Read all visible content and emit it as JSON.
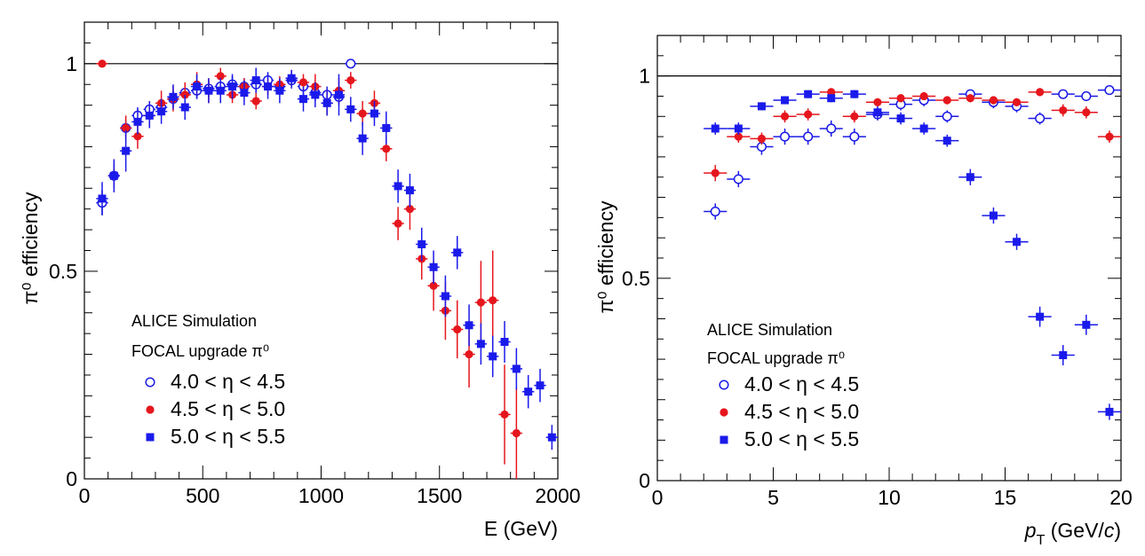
{
  "colors": {
    "open": "#1a1ae6",
    "red": "#e6161d",
    "blue": "#1a1aeb",
    "axis": "#000000"
  },
  "chart_data": [
    {
      "type": "scatter",
      "xlabel": "E (GeV)",
      "ylabel": "π⁰ efficiency",
      "xlim": [
        0,
        2000
      ],
      "ylim": [
        0,
        1.1
      ],
      "x_ticks": [
        0,
        500,
        1000,
        1500,
        2000
      ],
      "x_tick_labels": [
        "0",
        "500",
        "1000",
        "1500",
        "2000"
      ],
      "y_ticks": [
        0,
        0.5,
        1
      ],
      "y_tick_labels": [
        "0",
        "0.5",
        "1"
      ],
      "reference_line": 1,
      "legend_header": [
        "ALICE Simulation",
        "FOCAL upgrade π⁰"
      ],
      "series": [
        {
          "name": "4.0 < η < 4.5",
          "marker": "open-circle",
          "points": [
            [
              75,
              0.665,
              0.03
            ],
            [
              125,
              0.73,
              0.02
            ],
            [
              175,
              0.845,
              0.02
            ],
            [
              225,
              0.875,
              0.02
            ],
            [
              275,
              0.89,
              0.02
            ],
            [
              325,
              0.895,
              0.02
            ],
            [
              375,
              0.915,
              0.02
            ],
            [
              425,
              0.93,
              0.02
            ],
            [
              475,
              0.935,
              0.02
            ],
            [
              525,
              0.94,
              0.02
            ],
            [
              575,
              0.945,
              0.02
            ],
            [
              625,
              0.95,
              0.02
            ],
            [
              675,
              0.945,
              0.02
            ],
            [
              725,
              0.95,
              0.02
            ],
            [
              775,
              0.96,
              0.02
            ],
            [
              825,
              0.945,
              0.02
            ],
            [
              875,
              0.96,
              0.02
            ],
            [
              925,
              0.945,
              0.02
            ],
            [
              975,
              0.93,
              0.02
            ],
            [
              1025,
              0.925,
              0.02
            ],
            [
              1075,
              0.92,
              0.02
            ],
            [
              1125,
              1.0,
              0.01
            ]
          ]
        },
        {
          "name": "4.5 < η < 5.0",
          "marker": "filled-circle",
          "points": [
            [
              75,
              1.0,
              0.0
            ],
            [
              125,
              0.73,
              0.03
            ],
            [
              175,
              0.845,
              0.03
            ],
            [
              225,
              0.825,
              0.03
            ],
            [
              275,
              0.875,
              0.03
            ],
            [
              325,
              0.905,
              0.03
            ],
            [
              375,
              0.915,
              0.03
            ],
            [
              425,
              0.925,
              0.03
            ],
            [
              475,
              0.95,
              0.03
            ],
            [
              525,
              0.935,
              0.03
            ],
            [
              575,
              0.97,
              0.02
            ],
            [
              625,
              0.925,
              0.02
            ],
            [
              675,
              0.945,
              0.02
            ],
            [
              725,
              0.91,
              0.02
            ],
            [
              775,
              0.945,
              0.02
            ],
            [
              825,
              0.95,
              0.02
            ],
            [
              875,
              0.965,
              0.02
            ],
            [
              925,
              0.955,
              0.02
            ],
            [
              975,
              0.945,
              0.03
            ],
            [
              1025,
              0.905,
              0.03
            ],
            [
              1075,
              0.935,
              0.03
            ],
            [
              1125,
              0.96,
              0.02
            ],
            [
              1175,
              0.88,
              0.03
            ],
            [
              1225,
              0.905,
              0.03
            ],
            [
              1275,
              0.795,
              0.03
            ],
            [
              1325,
              0.615,
              0.04
            ],
            [
              1375,
              0.65,
              0.05
            ],
            [
              1425,
              0.53,
              0.05
            ],
            [
              1475,
              0.465,
              0.06
            ],
            [
              1525,
              0.405,
              0.07
            ],
            [
              1575,
              0.36,
              0.07
            ],
            [
              1625,
              0.3,
              0.08
            ],
            [
              1675,
              0.425,
              0.1
            ],
            [
              1725,
              0.43,
              0.12
            ],
            [
              1775,
              0.155,
              0.12
            ],
            [
              1825,
              0.11,
              0.11
            ]
          ]
        },
        {
          "name": "5.0 < η < 5.5",
          "marker": "filled-square",
          "points": [
            [
              75,
              0.675,
              0.04
            ],
            [
              125,
              0.73,
              0.04
            ],
            [
              175,
              0.79,
              0.05
            ],
            [
              225,
              0.86,
              0.03
            ],
            [
              275,
              0.875,
              0.03
            ],
            [
              325,
              0.885,
              0.03
            ],
            [
              375,
              0.92,
              0.03
            ],
            [
              425,
              0.895,
              0.03
            ],
            [
              475,
              0.945,
              0.03
            ],
            [
              525,
              0.935,
              0.03
            ],
            [
              575,
              0.935,
              0.03
            ],
            [
              625,
              0.945,
              0.03
            ],
            [
              675,
              0.93,
              0.03
            ],
            [
              725,
              0.96,
              0.03
            ],
            [
              775,
              0.945,
              0.03
            ],
            [
              825,
              0.935,
              0.03
            ],
            [
              875,
              0.965,
              0.02
            ],
            [
              925,
              0.915,
              0.03
            ],
            [
              975,
              0.925,
              0.03
            ],
            [
              1025,
              0.905,
              0.03
            ],
            [
              1075,
              0.925,
              0.05
            ],
            [
              1125,
              0.89,
              0.03
            ],
            [
              1175,
              0.82,
              0.04
            ],
            [
              1225,
              0.88,
              0.03
            ],
            [
              1275,
              0.845,
              0.04
            ],
            [
              1325,
              0.705,
              0.04
            ],
            [
              1375,
              0.695,
              0.04
            ],
            [
              1425,
              0.565,
              0.04
            ],
            [
              1475,
              0.51,
              0.04
            ],
            [
              1525,
              0.44,
              0.05
            ],
            [
              1575,
              0.545,
              0.04
            ],
            [
              1625,
              0.37,
              0.05
            ],
            [
              1675,
              0.325,
              0.05
            ],
            [
              1725,
              0.295,
              0.05
            ],
            [
              1775,
              0.33,
              0.05
            ],
            [
              1825,
              0.265,
              0.05
            ],
            [
              1875,
              0.21,
              0.04
            ],
            [
              1925,
              0.225,
              0.04
            ],
            [
              1975,
              0.1,
              0.03
            ]
          ]
        }
      ]
    },
    {
      "type": "scatter",
      "xlabel": "p_T (GeV/c)",
      "ylabel": "π⁰ efficiency",
      "xlim": [
        0,
        20
      ],
      "ylim": [
        0,
        1.1
      ],
      "x_ticks": [
        0,
        5,
        10,
        15,
        20
      ],
      "x_tick_labels": [
        "0",
        "5",
        "10",
        "15",
        "20"
      ],
      "y_ticks": [
        0,
        0.5,
        1
      ],
      "y_tick_labels": [
        "0",
        "0.5",
        "1"
      ],
      "reference_line": 1,
      "legend_header": [
        "ALICE Simulation",
        "FOCAL upgrade π⁰"
      ],
      "series": [
        {
          "name": "4.0 < η < 4.5",
          "marker": "open-circle",
          "points": [
            [
              2.5,
              0.665,
              0.02
            ],
            [
              3.5,
              0.745,
              0.02
            ],
            [
              4.5,
              0.825,
              0.02
            ],
            [
              5.5,
              0.85,
              0.02
            ],
            [
              6.5,
              0.85,
              0.02
            ],
            [
              7.5,
              0.87,
              0.02
            ],
            [
              8.5,
              0.85,
              0.02
            ],
            [
              9.5,
              0.905,
              0.015
            ],
            [
              10.5,
              0.93,
              0.015
            ],
            [
              11.5,
              0.94,
              0.015
            ],
            [
              12.5,
              0.9,
              0.015
            ],
            [
              13.5,
              0.955,
              0.01
            ],
            [
              14.5,
              0.935,
              0.015
            ],
            [
              15.5,
              0.925,
              0.015
            ],
            [
              16.5,
              0.895,
              0.015
            ],
            [
              17.5,
              0.955,
              0.01
            ],
            [
              18.5,
              0.95,
              0.01
            ],
            [
              19.5,
              0.965,
              0.01
            ]
          ]
        },
        {
          "name": "4.5 < η < 5.0",
          "marker": "filled-circle",
          "points": [
            [
              2.5,
              0.76,
              0.02
            ],
            [
              3.5,
              0.85,
              0.015
            ],
            [
              4.5,
              0.845,
              0.015
            ],
            [
              5.5,
              0.9,
              0.015
            ],
            [
              6.5,
              0.905,
              0.015
            ],
            [
              7.5,
              0.96,
              0.01
            ],
            [
              8.5,
              0.9,
              0.015
            ],
            [
              9.5,
              0.935,
              0.01
            ],
            [
              10.5,
              0.945,
              0.01
            ],
            [
              11.5,
              0.95,
              0.01
            ],
            [
              12.5,
              0.94,
              0.01
            ],
            [
              13.5,
              0.945,
              0.01
            ],
            [
              14.5,
              0.94,
              0.01
            ],
            [
              15.5,
              0.935,
              0.01
            ],
            [
              16.5,
              0.96,
              0.01
            ],
            [
              17.5,
              0.915,
              0.015
            ],
            [
              18.5,
              0.91,
              0.015
            ],
            [
              19.5,
              0.85,
              0.015
            ]
          ]
        },
        {
          "name": "5.0 < η < 5.5",
          "marker": "filled-square",
          "points": [
            [
              2.5,
              0.87,
              0.015
            ],
            [
              3.5,
              0.87,
              0.015
            ],
            [
              4.5,
              0.925,
              0.01
            ],
            [
              5.5,
              0.94,
              0.01
            ],
            [
              6.5,
              0.955,
              0.01
            ],
            [
              7.5,
              0.945,
              0.01
            ],
            [
              8.5,
              0.955,
              0.01
            ],
            [
              9.5,
              0.91,
              0.015
            ],
            [
              10.5,
              0.895,
              0.015
            ],
            [
              11.5,
              0.87,
              0.015
            ],
            [
              12.5,
              0.84,
              0.015
            ],
            [
              13.5,
              0.75,
              0.02
            ],
            [
              14.5,
              0.655,
              0.02
            ],
            [
              15.5,
              0.59,
              0.02
            ],
            [
              16.5,
              0.405,
              0.025
            ],
            [
              17.5,
              0.31,
              0.025
            ],
            [
              18.5,
              0.385,
              0.025
            ],
            [
              19.5,
              0.17,
              0.02
            ]
          ]
        }
      ]
    }
  ]
}
